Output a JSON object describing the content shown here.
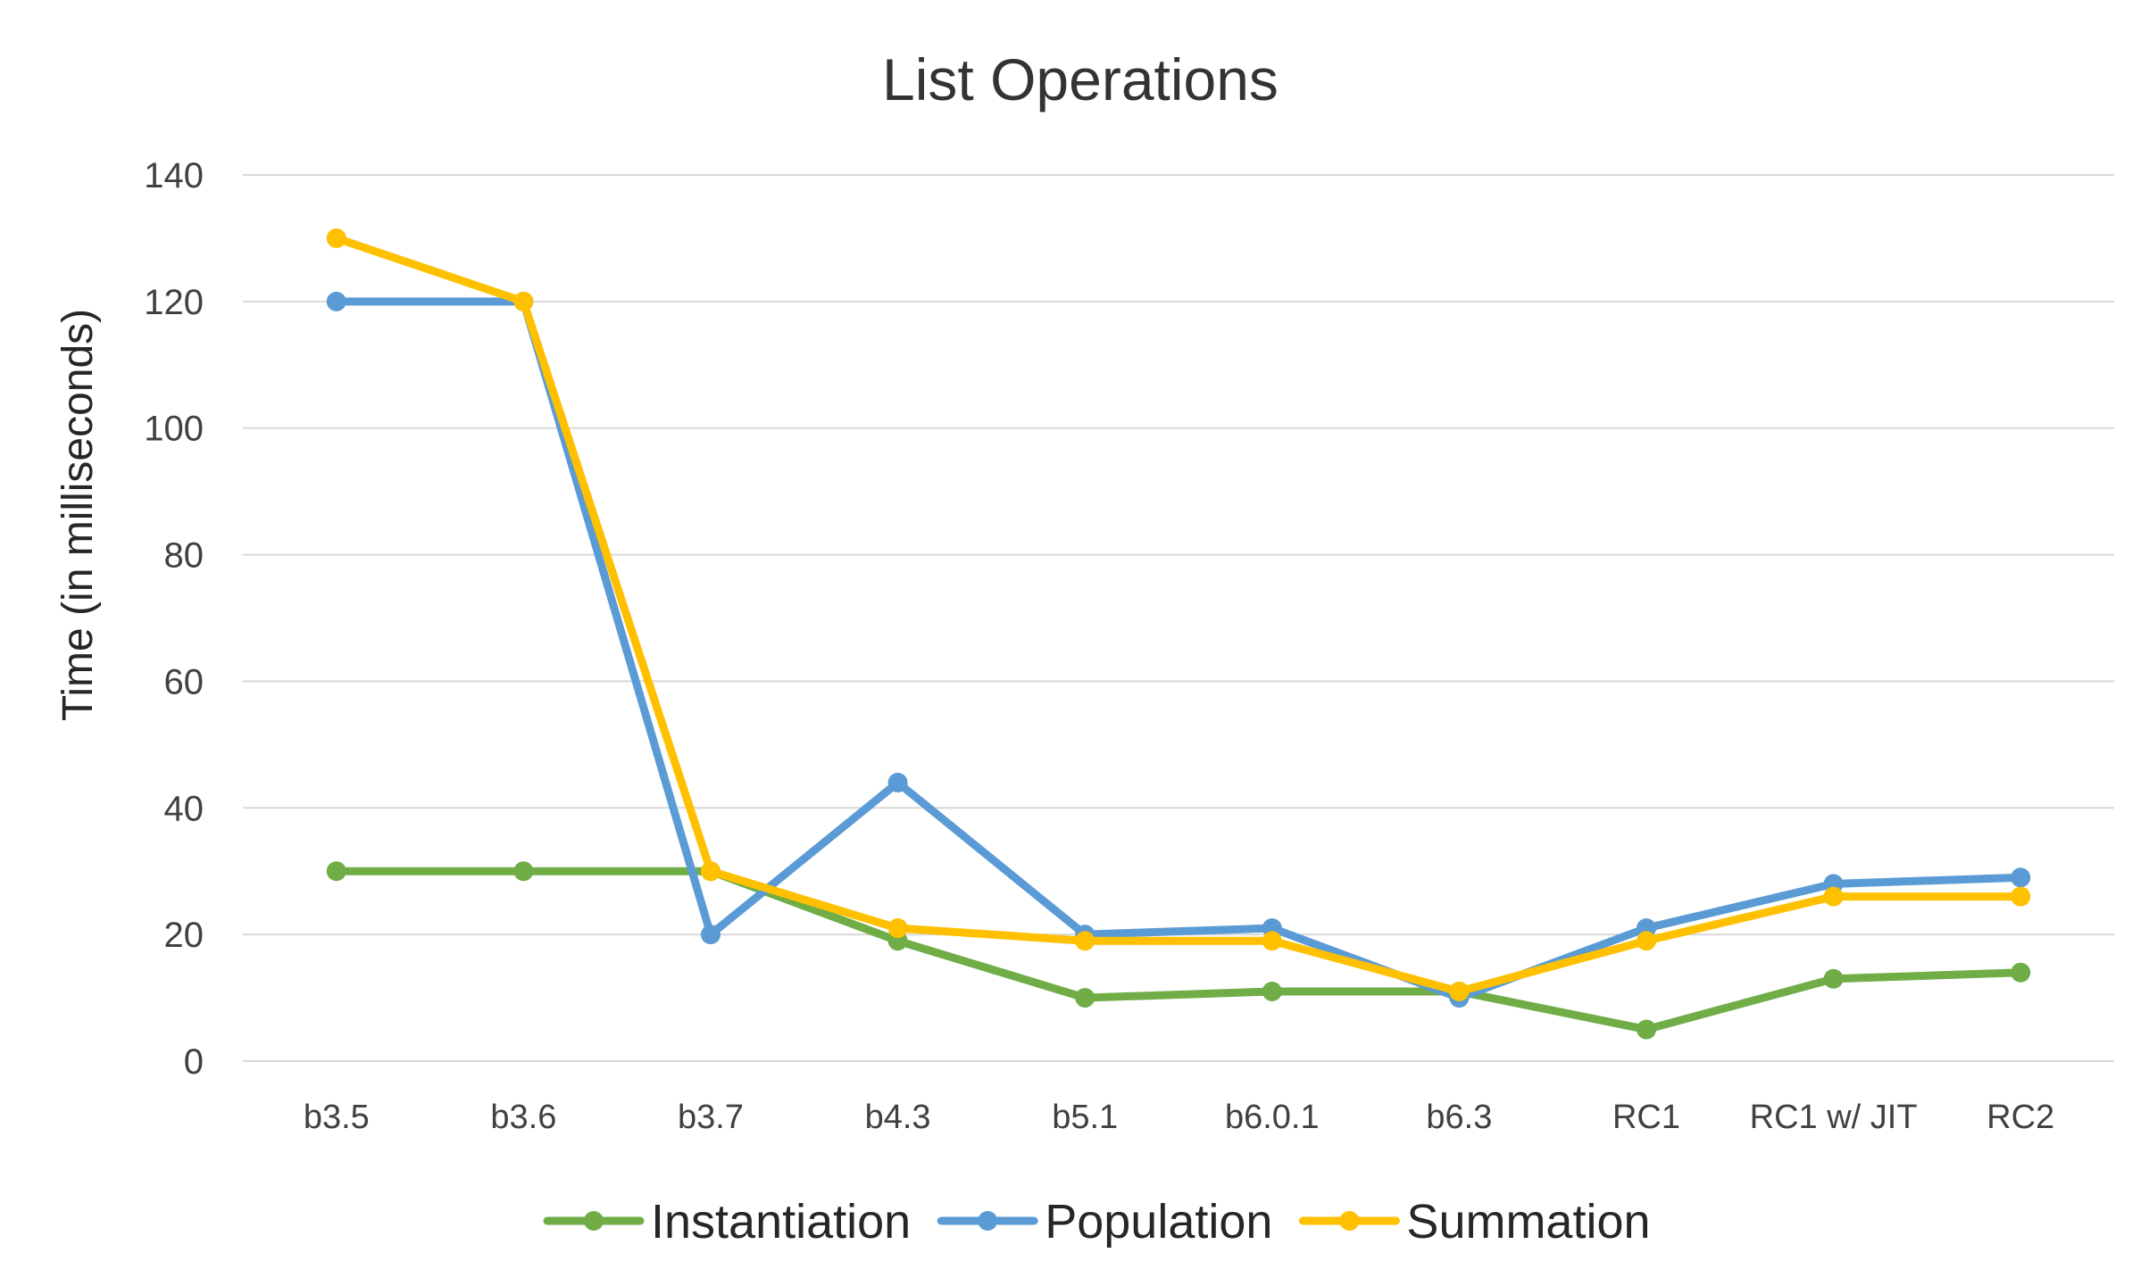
{
  "chart_data": {
    "type": "line",
    "title": "List Operations",
    "xlabel": "",
    "ylabel": "Time (in milliseconds)",
    "ylim": [
      0,
      140
    ],
    "yticks": [
      0,
      20,
      40,
      60,
      80,
      100,
      120,
      140
    ],
    "grid": "horizontal",
    "legend_position": "bottom",
    "categories": [
      "b3.5",
      "b3.6",
      "b3.7",
      "b4.3",
      "b5.1",
      "b6.0.1",
      "b6.3",
      "RC1",
      "RC1 w/ JIT",
      "RC2"
    ],
    "series": [
      {
        "name": "Instantiation",
        "color": "#70AD47",
        "values": [
          30,
          30,
          30,
          19,
          10,
          11,
          11,
          5,
          13,
          14
        ]
      },
      {
        "name": "Population",
        "color": "#5B9BD5",
        "values": [
          120,
          120,
          20,
          44,
          20,
          21,
          10,
          21,
          28,
          29
        ]
      },
      {
        "name": "Summation",
        "color": "#FFC000",
        "values": [
          130,
          120,
          30,
          21,
          19,
          19,
          11,
          19,
          26,
          26
        ]
      }
    ]
  }
}
